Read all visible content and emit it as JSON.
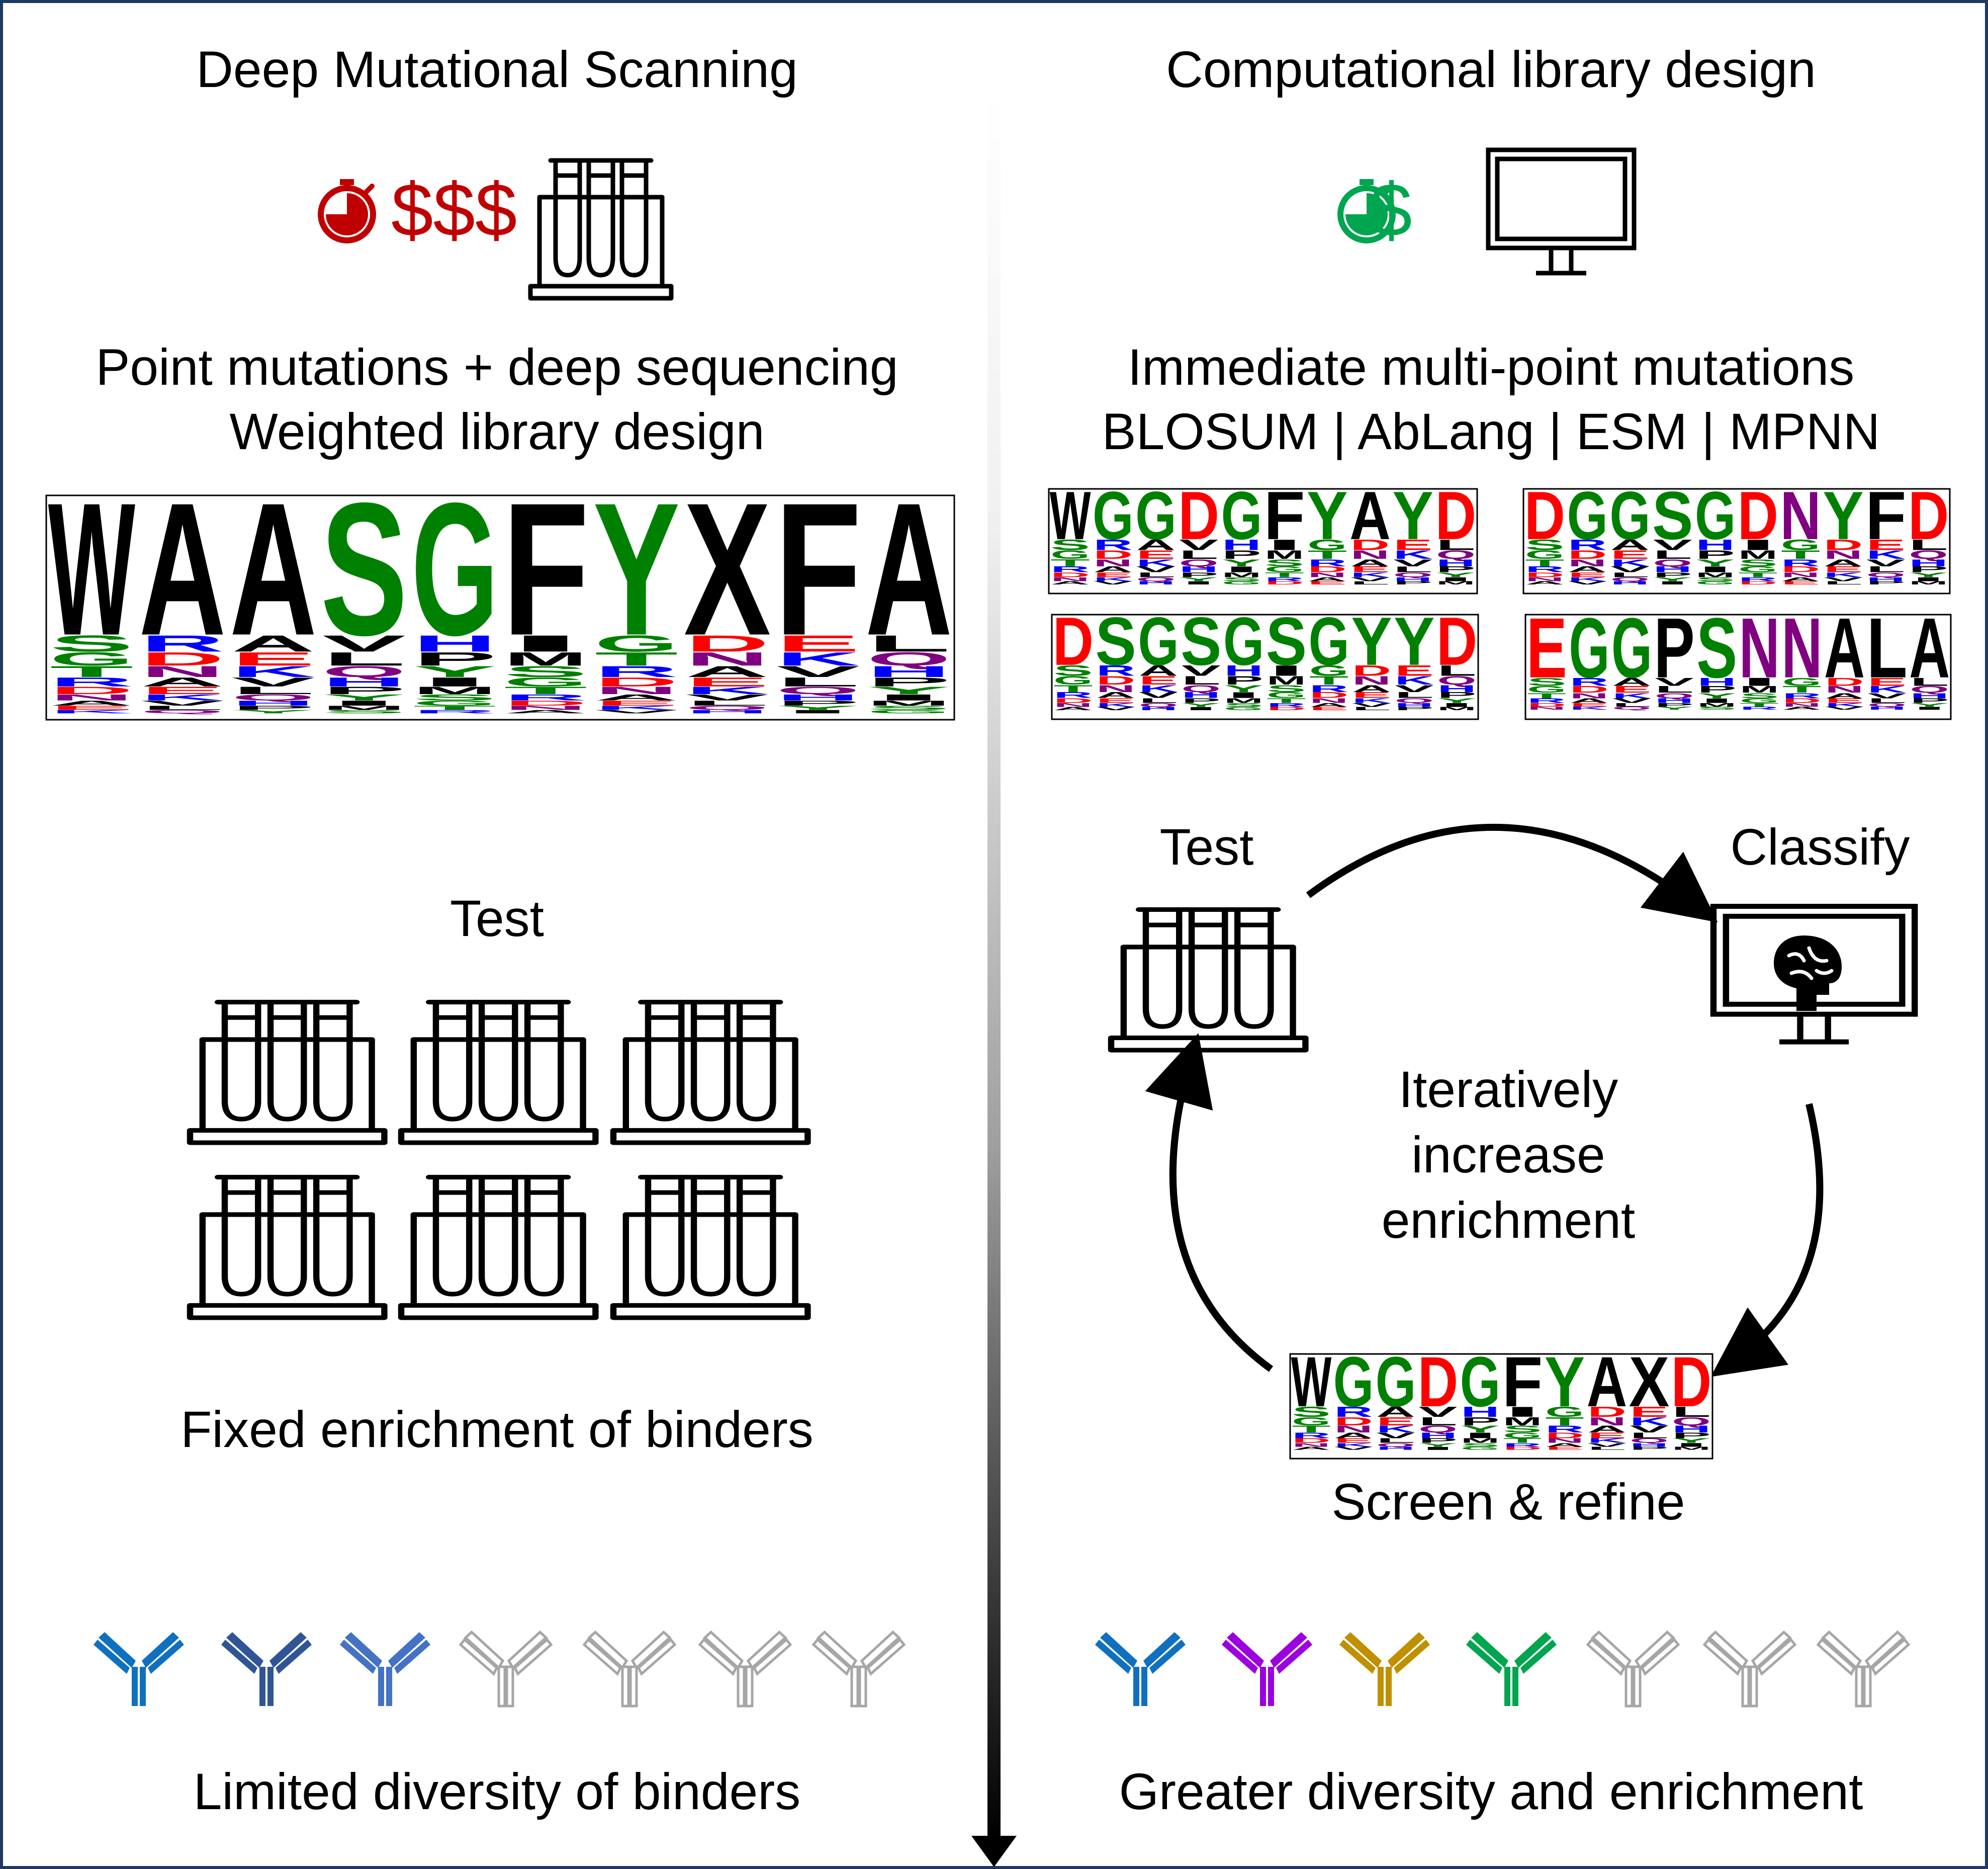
{
  "left": {
    "title": "Deep Mutational Scanning",
    "cost_label": "$$$",
    "cost_color": "#c00000",
    "method_line1": "Point mutations + deep sequencing",
    "method_line2": "Weighted library design",
    "logo_sequence": [
      "W",
      "A",
      "A",
      "S",
      "G",
      "F",
      "Y",
      "X",
      "F",
      "A"
    ],
    "test_label": "Test",
    "enrichment_label": "Fixed enrichment of binders",
    "antibody_colors": [
      "#1070c0",
      "#2f5597",
      "#4472c4",
      "#a6a6a6",
      "#a6a6a6",
      "#a6a6a6",
      "#a6a6a6"
    ],
    "diversity_label": "Limited diversity of binders"
  },
  "right": {
    "title": "Computational library design",
    "cost_label": "$",
    "cost_color": "#00a550",
    "method_line1": "Immediate multi-point mutations",
    "method_line2": "BLOSUM | AbLang | ESM | MPNN",
    "logos": [
      [
        "W",
        "G",
        "G",
        "D",
        "G",
        "F",
        "Y",
        "A",
        "Y",
        "D"
      ],
      [
        "D",
        "G",
        "G",
        "S",
        "G",
        "D",
        "N",
        "Y",
        "F",
        "D"
      ],
      [
        "D",
        "S",
        "G",
        "S",
        "G",
        "S",
        "G",
        "Y",
        "Y",
        "D"
      ],
      [
        "E",
        "G",
        "G",
        "P",
        "S",
        "N",
        "N",
        "A",
        "L",
        "A"
      ]
    ],
    "cycle_test_label": "Test",
    "classify_label": "Classify",
    "cycle_center_line1": "Iteratively",
    "cycle_center_line2": "increase",
    "cycle_center_line3": "enrichment",
    "screen_logo_sequence": [
      "W",
      "G",
      "G",
      "D",
      "G",
      "F",
      "Y",
      "A",
      "X",
      "D"
    ],
    "screen_label": "Screen & refine",
    "antibody_colors": [
      "#1070c0",
      "#9b00e0",
      "#c09000",
      "#00a550",
      "#a6a6a6",
      "#a6a6a6",
      "#a6a6a6"
    ],
    "diversity_label": "Greater diversity and enrichment"
  },
  "residue_colors": {
    "hydrophobic": "#000000",
    "polar": "#008000",
    "acidic": "#ff0000",
    "basic": "#0000ff",
    "amide": "#800080"
  },
  "icon_names": {
    "timer": "stopwatch-icon",
    "tube_rack": "test-tube-rack-icon",
    "monitor": "computer-monitor-icon",
    "brain": "brain-icon",
    "antibody": "antibody-icon"
  }
}
